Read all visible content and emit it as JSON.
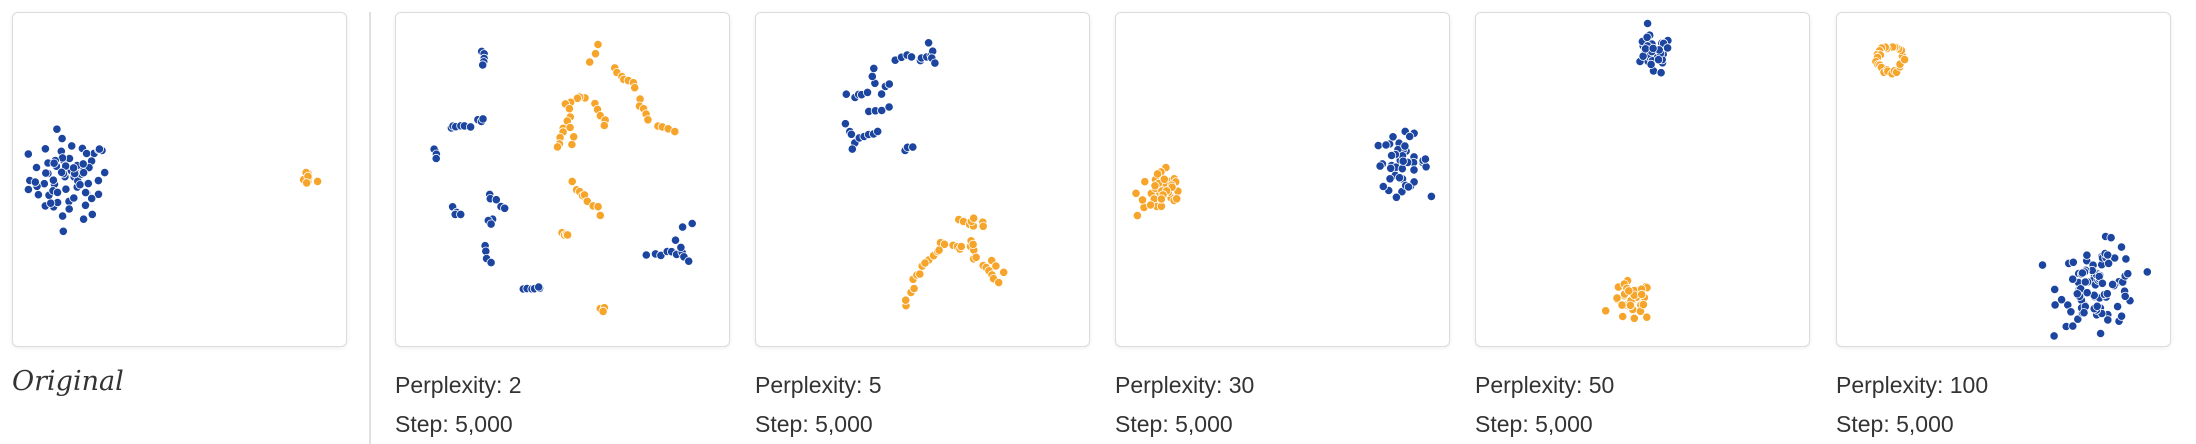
{
  "colors": {
    "cluster_a": "#1c45a0",
    "cluster_b": "#f7a52a"
  },
  "chart_data": [
    {
      "type": "scatter",
      "id": "original",
      "title": "Original",
      "xlim": [
        0,
        100
      ],
      "ylim": [
        0,
        100
      ],
      "series": [
        {
          "name": "cluster-a",
          "color": "#1c45a0",
          "groups": [
            {
              "cx": 17,
              "cy": 50,
              "spread": 6,
              "n": 75,
              "shape": "blob"
            }
          ]
        },
        {
          "name": "cluster-b",
          "color": "#f7a52a",
          "groups": [
            {
              "cx": 89,
              "cy": 50,
              "spread": 1.3,
              "n": 8,
              "shape": "blob"
            }
          ]
        }
      ]
    },
    {
      "type": "scatter",
      "id": "perplexity-2",
      "perplexity_label": "Perplexity: 2",
      "step_label": "Step: 5,000",
      "xlim": [
        0,
        100
      ],
      "ylim": [
        0,
        100
      ],
      "series": [
        {
          "name": "cluster-a",
          "color": "#1c45a0",
          "groups": [
            {
              "x1": 26,
              "y1": 89,
              "x2": 26,
              "y2": 84,
              "n": 5
            },
            {
              "x1": 16,
              "y1": 65,
              "x2": 22,
              "y2": 66,
              "n": 6
            },
            {
              "x1": 25,
              "y1": 67,
              "x2": 27,
              "y2": 68,
              "n": 3
            },
            {
              "x1": 12,
              "y1": 59,
              "x2": 12,
              "y2": 56,
              "n": 4
            },
            {
              "x1": 17,
              "y1": 41,
              "x2": 19,
              "y2": 39,
              "n": 4
            },
            {
              "x1": 28,
              "y1": 46,
              "x2": 33,
              "y2": 41,
              "n": 5
            },
            {
              "x1": 29,
              "y1": 38,
              "x2": 28,
              "y2": 36,
              "n": 3
            },
            {
              "x1": 26,
              "y1": 30,
              "x2": 29,
              "y2": 25,
              "n": 4
            },
            {
              "x1": 38,
              "y1": 17,
              "x2": 44,
              "y2": 17,
              "n": 6
            },
            {
              "x1": 76,
              "y1": 27,
              "x2": 86,
              "y2": 28,
              "n": 7
            },
            {
              "x1": 84,
              "y1": 32,
              "x2": 88,
              "y2": 25,
              "n": 4
            },
            {
              "x1": 86,
              "y1": 36,
              "x2": 89,
              "y2": 37,
              "n": 2
            }
          ]
        },
        {
          "name": "cluster-b",
          "color": "#f7a52a",
          "groups": [
            {
              "x1": 61,
              "y1": 90,
              "x2": 58,
              "y2": 85,
              "n": 3
            },
            {
              "x1": 66,
              "y1": 83,
              "x2": 72,
              "y2": 78,
              "n": 7
            },
            {
              "x1": 73,
              "y1": 74,
              "x2": 76,
              "y2": 68,
              "n": 5
            },
            {
              "x1": 79,
              "y1": 66,
              "x2": 84,
              "y2": 64,
              "n": 4
            },
            {
              "x1": 57,
              "y1": 75,
              "x2": 52,
              "y2": 73,
              "n": 5
            },
            {
              "x1": 53,
              "y1": 71,
              "x2": 48,
              "y2": 59,
              "n": 8
            },
            {
              "x1": 60,
              "y1": 73,
              "x2": 63,
              "y2": 66,
              "n": 5
            },
            {
              "x1": 53,
              "y1": 60,
              "x2": 54,
              "y2": 65,
              "n": 3
            },
            {
              "x1": 53,
              "y1": 49,
              "x2": 56,
              "y2": 45,
              "n": 4
            },
            {
              "x1": 57,
              "y1": 45,
              "x2": 62,
              "y2": 40,
              "n": 5
            },
            {
              "x1": 49,
              "y1": 34,
              "x2": 52,
              "y2": 33,
              "n": 4
            },
            {
              "x1": 62,
              "y1": 12,
              "x2": 63,
              "y2": 10,
              "n": 3
            }
          ]
        }
      ]
    },
    {
      "type": "scatter",
      "id": "perplexity-5",
      "perplexity_label": "Perplexity: 5",
      "step_label": "Step: 5,000",
      "xlim": [
        0,
        100
      ],
      "ylim": [
        0,
        100
      ],
      "series": [
        {
          "name": "cluster-a",
          "color": "#1c45a0",
          "groups": [
            {
              "x1": 42,
              "y1": 86,
              "x2": 53,
              "y2": 87,
              "n": 8
            },
            {
              "x1": 52,
              "y1": 90,
              "x2": 54,
              "y2": 85,
              "n": 4
            },
            {
              "x1": 28,
              "y1": 75,
              "x2": 34,
              "y2": 76,
              "n": 5
            },
            {
              "x1": 35,
              "y1": 79,
              "x2": 35,
              "y2": 83,
              "n": 3
            },
            {
              "x1": 38,
              "y1": 76,
              "x2": 40,
              "y2": 79,
              "n": 3
            },
            {
              "x1": 34,
              "y1": 70,
              "x2": 41,
              "y2": 72,
              "n": 5
            },
            {
              "x1": 27,
              "y1": 67,
              "x2": 29,
              "y2": 59,
              "n": 5
            },
            {
              "x1": 31,
              "y1": 62,
              "x2": 37,
              "y2": 64,
              "n": 5
            },
            {
              "x1": 45,
              "y1": 59,
              "x2": 47,
              "y2": 60,
              "n": 3
            }
          ]
        },
        {
          "name": "cluster-b",
          "color": "#f7a52a",
          "groups": [
            {
              "x1": 61,
              "y1": 37,
              "x2": 69,
              "y2": 36,
              "n": 6
            },
            {
              "x1": 56,
              "y1": 31,
              "x2": 66,
              "y2": 29,
              "n": 8
            },
            {
              "x1": 52,
              "y1": 26,
              "x2": 55,
              "y2": 29,
              "n": 4
            },
            {
              "x1": 48,
              "y1": 20,
              "x2": 51,
              "y2": 24,
              "n": 5
            },
            {
              "x1": 45,
              "y1": 12,
              "x2": 48,
              "y2": 17,
              "n": 4
            },
            {
              "x1": 64,
              "y1": 31,
              "x2": 68,
              "y2": 24,
              "n": 5
            },
            {
              "x1": 69,
              "y1": 23,
              "x2": 73,
              "y2": 19,
              "n": 5
            },
            {
              "x1": 71,
              "y1": 26,
              "x2": 74,
              "y2": 22,
              "n": 3
            },
            {
              "x1": 65,
              "y1": 37,
              "x2": 66,
              "y2": 38,
              "n": 2
            }
          ]
        }
      ]
    },
    {
      "type": "scatter",
      "id": "perplexity-30",
      "perplexity_label": "Perplexity: 30",
      "step_label": "Step: 5,000",
      "xlim": [
        0,
        100
      ],
      "ylim": [
        0,
        100
      ],
      "series": [
        {
          "name": "cluster-a",
          "color": "#1c45a0",
          "groups": [
            {
              "cx": 86,
              "cy": 55,
              "spread": 4,
              "n": 45,
              "shape": "blob"
            }
          ]
        },
        {
          "name": "cluster-b",
          "color": "#f7a52a",
          "groups": [
            {
              "cx": 14,
              "cy": 46,
              "spread": 3.8,
              "n": 45,
              "shape": "blob"
            }
          ]
        }
      ]
    },
    {
      "type": "scatter",
      "id": "perplexity-50",
      "perplexity_label": "Perplexity: 50",
      "step_label": "Step: 5,000",
      "xlim": [
        0,
        100
      ],
      "ylim": [
        0,
        100
      ],
      "series": [
        {
          "name": "cluster-a",
          "color": "#1c45a0",
          "groups": [
            {
              "cx": 53,
              "cy": 87,
              "spread": 3,
              "n": 35,
              "shape": "blob"
            }
          ]
        },
        {
          "name": "cluster-b",
          "color": "#f7a52a",
          "groups": [
            {
              "cx": 47,
              "cy": 13,
              "spread": 3,
              "n": 35,
              "shape": "blob"
            }
          ]
        }
      ]
    },
    {
      "type": "scatter",
      "id": "perplexity-100",
      "perplexity_label": "Perplexity: 100",
      "step_label": "Step: 5,000",
      "xlim": [
        0,
        100
      ],
      "ylim": [
        0,
        100
      ],
      "series": [
        {
          "name": "cluster-a",
          "color": "#1c45a0",
          "groups": [
            {
              "cx": 79,
              "cy": 18,
              "spread": 6,
              "n": 90,
              "shape": "blob"
            }
          ]
        },
        {
          "name": "cluster-b",
          "color": "#f7a52a",
          "groups": [
            {
              "cx": 16,
              "cy": 86,
              "spread": 3.8,
              "n": 28,
              "shape": "ring"
            }
          ]
        }
      ]
    }
  ]
}
